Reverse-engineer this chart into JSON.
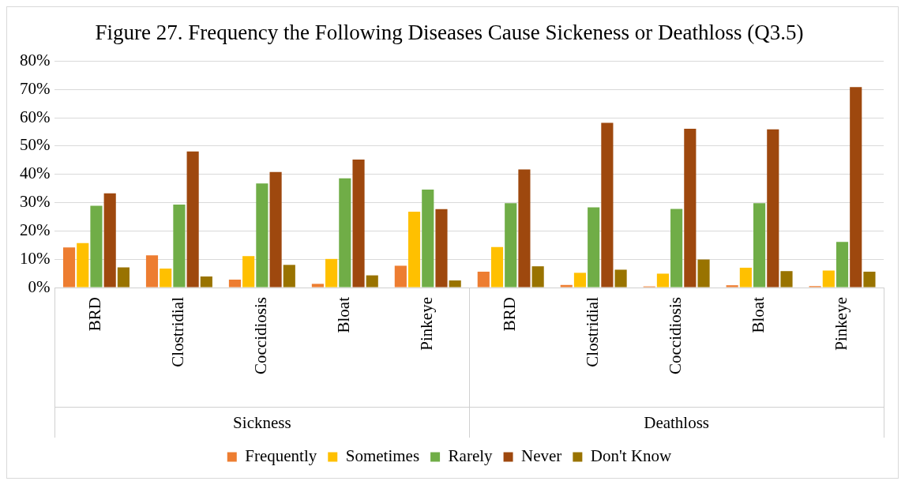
{
  "chart_data": {
    "type": "bar",
    "title": "Figure 27. Frequency the Following Diseases Cause Sickeness or Deathloss (Q3.5)",
    "categories": [
      "BRD",
      "Clostridial",
      "Coccidiosis",
      "Bloat",
      "Pinkeye",
      "BRD",
      "Clostridial",
      "Coccidiosis",
      "Bloat",
      "Pinkeye"
    ],
    "annotations": [
      "Sickness",
      "Deathloss"
    ],
    "series": [
      {
        "name": "Frequently",
        "color": "#ed7d31",
        "values": [
          14.2,
          11.4,
          2.8,
          1.3,
          7.7,
          5.6,
          0.9,
          0.4,
          0.8,
          0.5
        ]
      },
      {
        "name": "Sometimes",
        "color": "#ffc000",
        "values": [
          15.7,
          6.7,
          11.1,
          10.1,
          26.8,
          14.3,
          5.2,
          4.9,
          7.0,
          6.0
        ]
      },
      {
        "name": "Rarely",
        "color": "#70ad47",
        "values": [
          28.9,
          29.3,
          36.8,
          38.6,
          34.6,
          29.8,
          28.3,
          27.8,
          29.8,
          16.1
        ]
      },
      {
        "name": "Never",
        "color": "#9e480e",
        "values": [
          33.3,
          48.1,
          40.8,
          45.2,
          27.7,
          41.7,
          58.2,
          56.1,
          55.9,
          70.8
        ]
      },
      {
        "name": "Don't Know",
        "color": "#997300",
        "values": [
          7.1,
          3.9,
          8.0,
          4.3,
          2.5,
          7.5,
          6.3,
          9.9,
          5.8,
          5.6
        ]
      }
    ],
    "ylim": [
      0,
      80
    ],
    "yticks": [
      {
        "value": 0,
        "label": "0%"
      },
      {
        "value": 10,
        "label": "10%"
      },
      {
        "value": 20,
        "label": "20%"
      },
      {
        "value": 30,
        "label": "30%"
      },
      {
        "value": 40,
        "label": "40%"
      },
      {
        "value": 50,
        "label": "50%"
      },
      {
        "value": 60,
        "label": "60%"
      },
      {
        "value": 70,
        "label": "70%"
      },
      {
        "value": 80,
        "label": "80%"
      }
    ],
    "grid": "y",
    "legend": "bottom"
  }
}
